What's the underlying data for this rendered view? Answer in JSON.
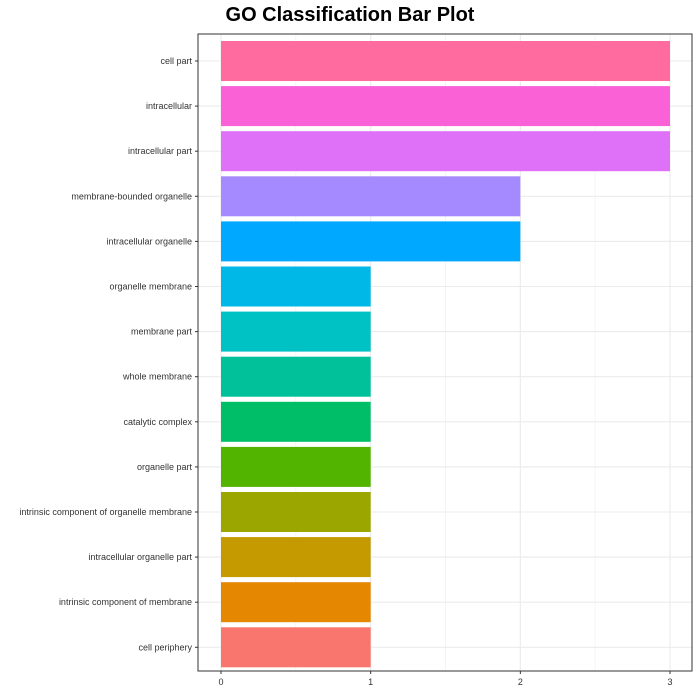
{
  "chart_data": {
    "type": "bar",
    "orientation": "horizontal",
    "title": "GO Classification Bar Plot",
    "xlabel": "",
    "ylabel": "",
    "xlim": [
      0,
      3
    ],
    "xticks": [
      0,
      1,
      2,
      3
    ],
    "grid": true,
    "legend": "none",
    "categories": [
      "cell part",
      "intracellular",
      "intracellular part",
      "membrane-bounded organelle",
      "intracellular organelle",
      "organelle membrane",
      "membrane part",
      "whole membrane",
      "catalytic complex",
      "organelle part",
      "intrinsic component of organelle membrane",
      "intracellular organelle part",
      "intrinsic component of membrane",
      "cell periphery"
    ],
    "values": [
      3,
      3,
      3,
      2,
      2,
      1,
      1,
      1,
      1,
      1,
      1,
      1,
      1,
      1
    ],
    "colors": [
      "#FF6A9F",
      "#FB61D7",
      "#DF70F8",
      "#A58AFF",
      "#00A9FF",
      "#00B8E7",
      "#00C1C3",
      "#00C19A",
      "#00BE67",
      "#53B400",
      "#9BA700",
      "#C49A00",
      "#E58700",
      "#F8766D"
    ]
  }
}
